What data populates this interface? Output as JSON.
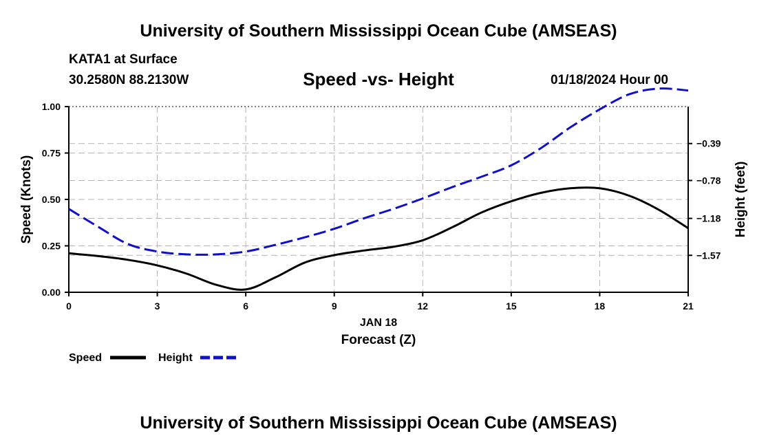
{
  "header": {
    "title_top": "University of Southern Mississippi Ocean Cube (AMSEAS)",
    "title_bottom": "University of Southern Mississippi Ocean Cube (AMSEAS)",
    "station": "KATA1 at Surface",
    "location": "30.2580N  88.2130W",
    "datetime": "01/18/2024 Hour 00"
  },
  "chart_data": {
    "type": "line",
    "title": "Speed -vs- Height",
    "xlabel": "Forecast (Z)",
    "date_label": "JAN 18",
    "ylabel_left": "Speed (Knots)",
    "ylabel_right": "Height (feet)",
    "x": [
      0,
      1,
      2,
      3,
      4,
      5,
      6,
      7,
      8,
      9,
      10,
      11,
      12,
      13,
      14,
      15,
      16,
      17,
      18,
      19,
      20,
      21
    ],
    "x_ticks": [
      0,
      3,
      6,
      9,
      12,
      15,
      18,
      21
    ],
    "x_tick_labels": [
      "0",
      "3",
      "6",
      "9",
      "12",
      "15",
      "18",
      "21"
    ],
    "xlim": [
      0,
      21
    ],
    "ylim_left": [
      0,
      1
    ],
    "y_ticks_left": [
      0,
      0.25,
      0.5,
      0.75,
      1.0
    ],
    "y_tick_labels_left": [
      "0.00",
      "0.25",
      "0.50",
      "0.75",
      "1.00"
    ],
    "ylim_right": [
      -1.96,
      0.0
    ],
    "y_ticks_right": [
      -1.57,
      -1.18,
      -0.78,
      -0.39
    ],
    "y_tick_labels_right": [
      "−1.57",
      "−1.18",
      "−0.78",
      "−0.39"
    ],
    "grid": true,
    "series": [
      {
        "name": "Speed",
        "axis": "left",
        "color": "#000000",
        "dash": "solid",
        "values": [
          0.21,
          0.195,
          0.175,
          0.145,
          0.1,
          0.04,
          0.015,
          0.08,
          0.16,
          0.2,
          0.225,
          0.245,
          0.28,
          0.35,
          0.43,
          0.49,
          0.535,
          0.56,
          0.56,
          0.52,
          0.445,
          0.345
        ]
      },
      {
        "name": "Height",
        "axis": "right",
        "color": "#1010c8",
        "dash": "dashed",
        "values": [
          -1.08,
          -1.27,
          -1.45,
          -1.53,
          -1.56,
          -1.56,
          -1.53,
          -1.46,
          -1.38,
          -1.29,
          -1.18,
          -1.08,
          -0.97,
          -0.85,
          -0.74,
          -0.62,
          -0.44,
          -0.22,
          -0.03,
          0.13,
          0.19,
          0.17
        ]
      }
    ]
  }
}
